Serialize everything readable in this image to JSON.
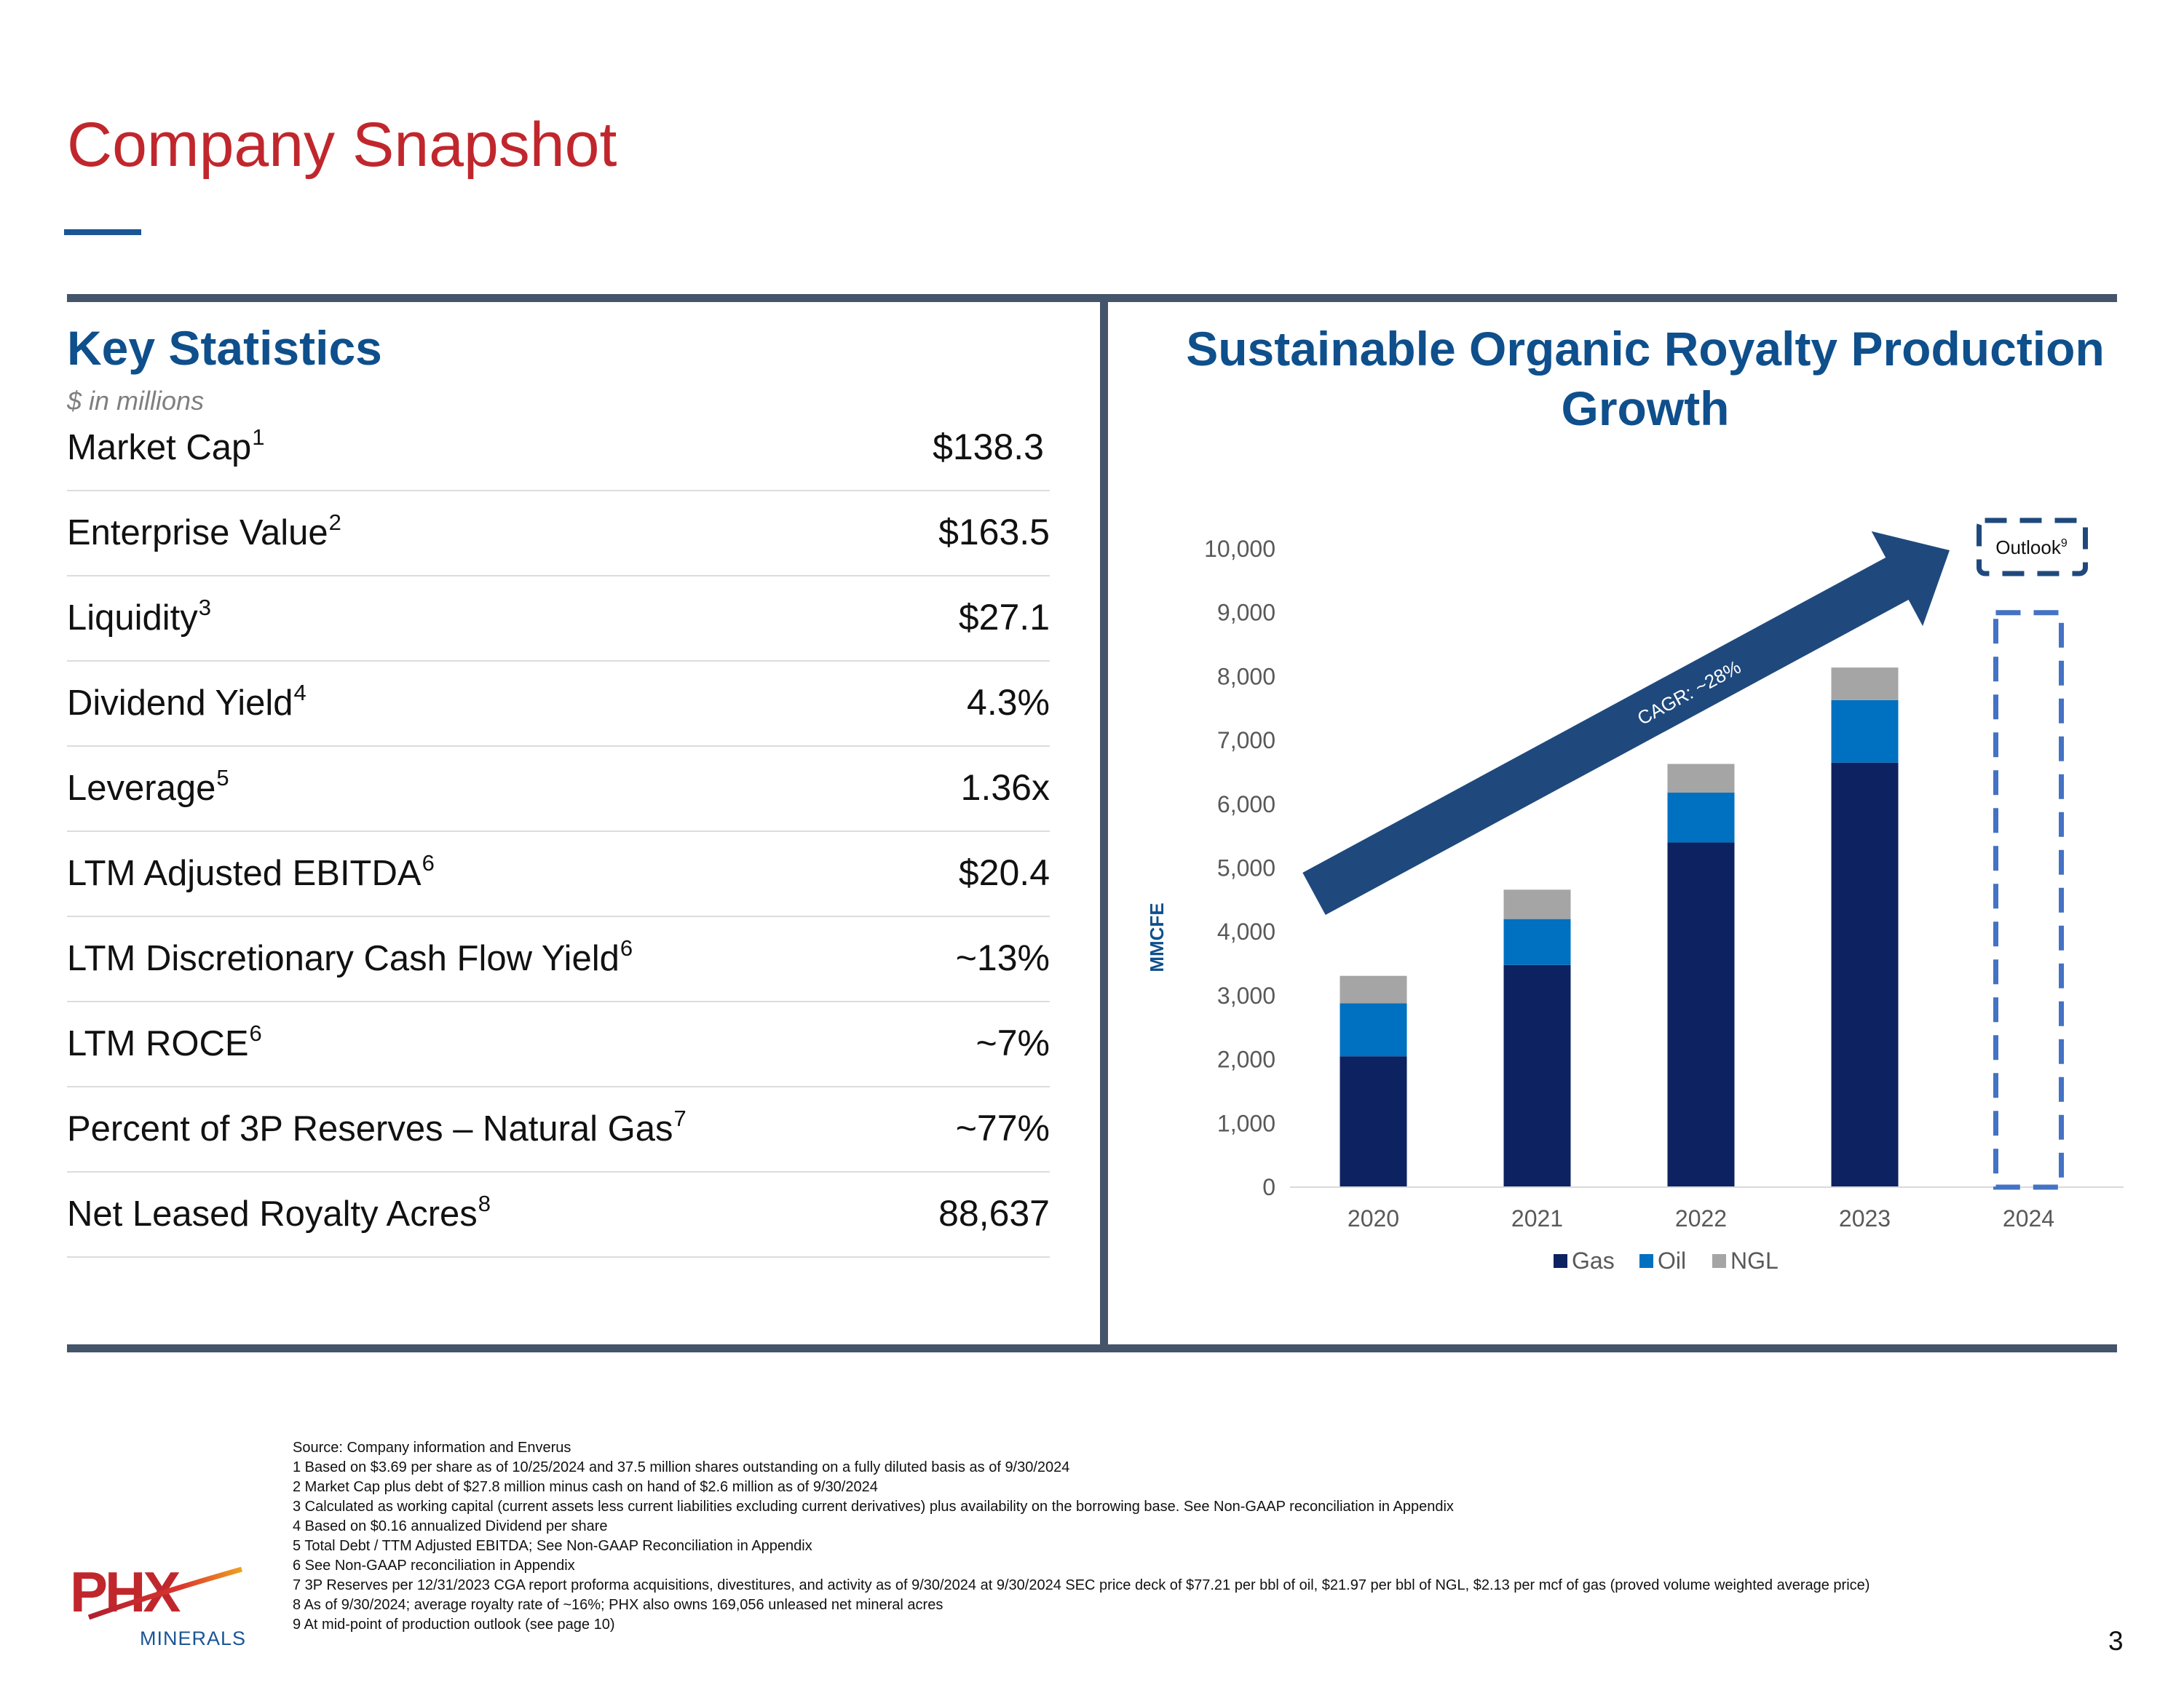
{
  "page": {
    "title": "Company Snapshot",
    "page_number": "3"
  },
  "key_statistics": {
    "title": "Key Statistics",
    "subtitle": "$ in millions",
    "rows": [
      {
        "label": "Market Cap",
        "sup": "1",
        "value": "$138.3"
      },
      {
        "label": "Enterprise Value",
        "sup": "2",
        "value": "$163.5"
      },
      {
        "label": "Liquidity",
        "sup": "3",
        "value": "$27.1"
      },
      {
        "label": "Dividend Yield",
        "sup": "4",
        "value": "4.3%"
      },
      {
        "label": "Leverage",
        "sup": "5",
        "value": "1.36x"
      },
      {
        "label": "LTM Adjusted EBITDA",
        "sup": "6",
        "value": "$20.4"
      },
      {
        "label": "LTM Discretionary Cash Flow Yield",
        "sup": "6",
        "value": "~13%"
      },
      {
        "label": "LTM ROCE",
        "sup": "6",
        "value": "~7%"
      },
      {
        "label": "Percent of 3P Reserves – Natural Gas",
        "sup": "7",
        "value": "~77%"
      },
      {
        "label": "Net Leased Royalty Acres",
        "sup": "8",
        "value": "88,637"
      }
    ]
  },
  "chart_title": "Sustainable Organic Royalty Production Growth",
  "chart_data": {
    "type": "bar",
    "stacked": true,
    "title": "Sustainable Organic Royalty Production Growth",
    "xlabel": "",
    "ylabel": "MMCFE",
    "ylim": [
      0,
      10000
    ],
    "yticks": [
      0,
      1000,
      2000,
      3000,
      4000,
      5000,
      6000,
      7000,
      8000,
      9000,
      10000
    ],
    "ytick_labels": [
      "0",
      "1,000",
      "2,000",
      "3,000",
      "4,000",
      "5,000",
      "6,000",
      "7,000",
      "8,000",
      "9,000",
      "10,000"
    ],
    "categories": [
      "2020",
      "2021",
      "2022",
      "2023",
      "2024"
    ],
    "series": [
      {
        "name": "Gas",
        "color": "#0d2260",
        "values": [
          2050,
          3480,
          5400,
          6650,
          null
        ]
      },
      {
        "name": "Oil",
        "color": "#0070c0",
        "values": [
          830,
          720,
          780,
          980,
          null
        ]
      },
      {
        "name": "NGL",
        "color": "#a5a5a5",
        "values": [
          430,
          460,
          450,
          510,
          null
        ]
      }
    ],
    "legend": [
      "Gas",
      "Oil",
      "NGL"
    ],
    "outlook": {
      "category": "2024",
      "value": 9000,
      "label": "Outlook",
      "sup": "9"
    },
    "annotation": "CAGR: ~28%"
  },
  "footnotes": [
    "Source: Company information and Enverus",
    "1 Based on $3.69 per share as of 10/25/2024 and 37.5 million shares outstanding on a fully diluted basis  as of 9/30/2024",
    "2 Market Cap plus debt of $27.8 million minus cash on hand of $2.6 million as of 9/30/2024",
    "3 Calculated as working capital (current assets less current liabilities excluding current derivatives) plus availability on the borrowing base.  See Non-GAAP reconciliation in Appendix",
    "4 Based on $0.16 annualized Dividend per share",
    "5 Total Debt / TTM Adjusted EBITDA; See Non-GAAP Reconciliation in Appendix",
    "6 See Non-GAAP reconciliation in Appendix",
    "7 3P Reserves per 12/31/2023 CGA report proforma acquisitions, divestitures, and activity as of 9/30/2024 at 9/30/2024 SEC price deck of $77.21 per bbl of oil, $21.97 per bbl of NGL, $2.13 per mcf of gas (proved volume weighted average price)",
    "8 As of 9/30/2024; average royalty rate of ~16%;  PHX also owns 169,056 unleased net mineral acres",
    "9 At mid-point of production outlook (see page 10)"
  ],
  "logo": {
    "name": "PHX",
    "sub": "MINERALS"
  },
  "colors": {
    "title_red": "#c0272d",
    "heading_blue": "#0e4f8c",
    "rule": "#44546a",
    "arrow": "#1f497d",
    "outlook_dash": "#4472c4"
  }
}
